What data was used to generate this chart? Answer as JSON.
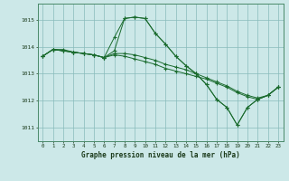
{
  "title": "Graphe pression niveau de la mer (hPa)",
  "bg_color": "#cce8e8",
  "grid_color": "#88bbbb",
  "line_color": "#1a6b2e",
  "marker": "+",
  "x_min": 0,
  "x_max": 23,
  "y_min": 1010.5,
  "y_max": 1015.6,
  "y_ticks": [
    1011,
    1012,
    1013,
    1014,
    1015
  ],
  "x_ticks": [
    0,
    1,
    2,
    3,
    4,
    5,
    6,
    7,
    8,
    9,
    10,
    11,
    12,
    13,
    14,
    15,
    16,
    17,
    18,
    19,
    20,
    21,
    22,
    23
  ],
  "series": [
    [
      1013.65,
      1013.9,
      1013.9,
      1013.8,
      1013.75,
      1013.7,
      1013.6,
      1014.35,
      1015.05,
      1015.1,
      1015.05,
      1014.5,
      1014.1,
      1013.65,
      1013.3,
      1013.0,
      1012.6,
      1012.05,
      1011.75,
      1011.1,
      1011.75,
      1012.05,
      1012.2,
      1012.5
    ],
    [
      1013.65,
      1013.9,
      1013.85,
      1013.8,
      1013.75,
      1013.7,
      1013.6,
      1013.85,
      1015.05,
      1015.1,
      1015.05,
      1014.5,
      1014.1,
      1013.65,
      1013.3,
      1013.0,
      1012.6,
      1012.05,
      1011.75,
      1011.1,
      1011.75,
      1012.05,
      1012.2,
      1012.5
    ],
    [
      1013.65,
      1013.9,
      1013.85,
      1013.8,
      1013.75,
      1013.7,
      1013.6,
      1013.75,
      1013.75,
      1013.7,
      1013.6,
      1013.5,
      1013.35,
      1013.25,
      1013.15,
      1013.0,
      1012.85,
      1012.7,
      1012.55,
      1012.35,
      1012.2,
      1012.1,
      1012.2,
      1012.5
    ],
    [
      1013.65,
      1013.9,
      1013.85,
      1013.8,
      1013.75,
      1013.7,
      1013.6,
      1013.7,
      1013.65,
      1013.55,
      1013.45,
      1013.35,
      1013.2,
      1013.1,
      1013.0,
      1012.9,
      1012.8,
      1012.65,
      1012.5,
      1012.3,
      1012.15,
      1012.05,
      1012.2,
      1012.5
    ]
  ]
}
